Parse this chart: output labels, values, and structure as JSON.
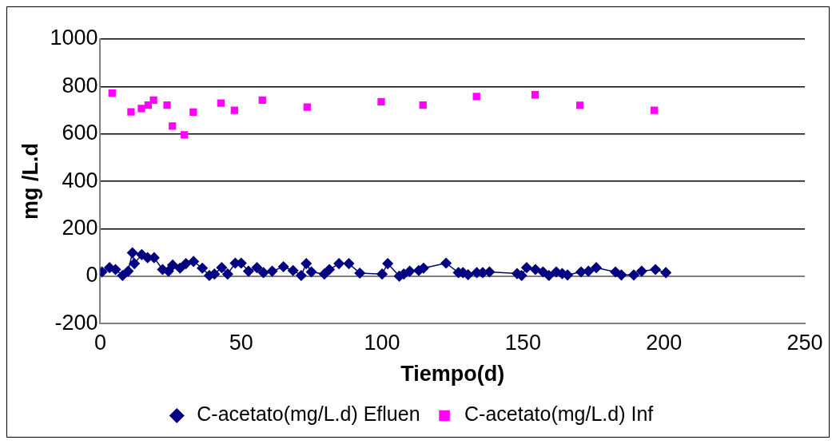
{
  "chart_data": {
    "type": "line",
    "xlabel": "Tiempo(d)",
    "ylabel": "mg /L.d",
    "xlim": [
      0,
      250
    ],
    "xticks": [
      0,
      50,
      100,
      150,
      200,
      250
    ],
    "ylim": [
      -200,
      1000
    ],
    "yticks": [
      -200,
      0,
      200,
      400,
      600,
      800,
      1000
    ],
    "grid": "y",
    "legend": "bottom",
    "series": [
      {
        "name": "C-acetato(mg/L.d) Efluen",
        "color": "#000080",
        "marker": "diamond",
        "x": [
          0.6,
          3.3,
          5.4,
          7.9,
          9.9,
          11.4,
          12.1,
          14.7,
          16.8,
          19.1,
          22.1,
          24.2,
          25.7,
          28.3,
          30.4,
          33.1,
          36.2,
          38.7,
          40.5,
          43.1,
          45.2,
          47.9,
          50,
          52.6,
          55.6,
          57.9,
          61,
          65,
          68.4,
          71.3,
          73.1,
          74.9,
          79.5,
          81.3,
          84.7,
          88.2,
          92.1,
          100,
          102,
          106.1,
          107.7,
          109.8,
          113,
          114.7,
          122.7,
          127.1,
          128.7,
          130.5,
          133.6,
          135.7,
          138.1,
          147.9,
          149.5,
          151.3,
          154.4,
          157.1,
          159.2,
          161.8,
          163.9,
          165.8,
          170.6,
          173.2,
          176,
          182.8,
          184.9,
          189.3,
          192.1,
          197,
          200.7
        ],
        "values": [
          18,
          36,
          28,
          3,
          21,
          99,
          53,
          91,
          78,
          78,
          28,
          21,
          47,
          34,
          53,
          62,
          34,
          3,
          9,
          36,
          9,
          55,
          55,
          21,
          36,
          15,
          21,
          40,
          24,
          3,
          53,
          18,
          9,
          28,
          53,
          53,
          13,
          9,
          53,
          0,
          9,
          21,
          24,
          34,
          55,
          15,
          15,
          6,
          15,
          15,
          18,
          11,
          3,
          36,
          28,
          18,
          3,
          18,
          11,
          5,
          18,
          21,
          36,
          18,
          5,
          5,
          21,
          28,
          15
        ]
      },
      {
        "name": "C-acetato(mg/L.d) Inf",
        "type": "scatter",
        "color": "#ff00ff",
        "marker": "square",
        "x": [
          4.2,
          10.9,
          14.6,
          17,
          18.9,
          23.7,
          25.6,
          29.8,
          33,
          42.8,
          47.6,
          57.5,
          73.4,
          99.7,
          114.5,
          133.5,
          154.3,
          170.2,
          196.6
        ],
        "values": [
          772,
          693,
          707,
          722,
          743,
          722,
          633,
          596,
          692,
          730,
          700,
          743,
          713,
          736,
          722,
          758,
          765,
          721,
          700
        ]
      }
    ]
  }
}
